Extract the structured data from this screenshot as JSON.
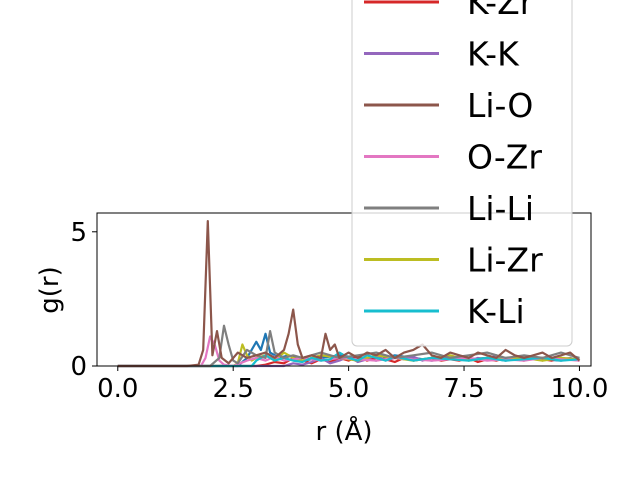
{
  "chart_data": {
    "type": "line",
    "xlabel": "r (Å)",
    "ylabel": "g(r)",
    "xlim": [
      -0.45,
      10.25
    ],
    "ylim": [
      0,
      5.7
    ],
    "xticks": [
      0.0,
      2.5,
      5.0,
      7.5,
      10.0
    ],
    "xtick_labels": [
      "0.0",
      "2.5",
      "5.0",
      "7.5",
      "10.0"
    ],
    "yticks": [
      0,
      5
    ],
    "ytick_labels": [
      "0",
      "5"
    ],
    "grid": false,
    "legend_position": "upper-right (extends above axes)",
    "series": [
      {
        "name": "K-Zr",
        "color": "#d62728",
        "x": [
          0,
          3.0,
          3.2,
          3.4,
          3.6,
          3.8,
          4.0,
          4.2,
          4.4,
          4.6,
          4.8,
          5.0,
          5.2,
          5.4,
          5.6,
          5.8,
          6.0,
          6.2,
          6.4,
          6.6,
          6.8,
          7.0,
          7.2,
          7.4,
          7.6,
          7.8,
          8.0,
          8.2,
          8.4,
          8.6,
          8.8,
          9.0,
          9.2,
          9.4,
          9.6,
          9.8,
          10.0
        ],
        "y": [
          0,
          0,
          0.05,
          0.15,
          0.1,
          0.3,
          0.2,
          0.1,
          0.25,
          0.15,
          0.3,
          0.2,
          0.35,
          0.2,
          0.3,
          0.25,
          0.15,
          0.3,
          0.2,
          0.25,
          0.3,
          0.2,
          0.25,
          0.2,
          0.3,
          0.15,
          0.25,
          0.2,
          0.3,
          0.25,
          0.2,
          0.3,
          0.25,
          0.2,
          0.3,
          0.25,
          0.2
        ]
      },
      {
        "name": "K-K",
        "color": "#9467bd",
        "x": [
          0,
          3.6,
          3.8,
          4.0,
          4.2,
          4.4,
          4.6,
          4.8,
          5.0,
          5.2,
          5.4,
          5.6,
          5.8,
          6.0,
          6.2,
          6.4,
          6.6,
          6.8,
          7.0,
          7.2,
          7.4,
          7.6,
          7.8,
          8.0,
          8.2,
          8.4,
          8.6,
          8.8,
          9.0,
          9.2,
          9.4,
          9.6,
          9.8,
          10.0
        ],
        "y": [
          0,
          0,
          0.1,
          0.05,
          0.15,
          0.3,
          0.1,
          0.2,
          0.35,
          0.15,
          0.25,
          0.4,
          0.2,
          0.3,
          0.25,
          0.35,
          0.2,
          0.3,
          0.25,
          0.3,
          0.35,
          0.2,
          0.3,
          0.25,
          0.4,
          0.2,
          0.3,
          0.25,
          0.35,
          0.2,
          0.3,
          0.25,
          0.3,
          0.2
        ]
      },
      {
        "name": "Li-O",
        "color": "#8c564b",
        "x": [
          0,
          1.5,
          1.75,
          1.85,
          1.95,
          2.05,
          2.15,
          2.25,
          2.4,
          2.6,
          2.8,
          3.0,
          3.2,
          3.4,
          3.6,
          3.7,
          3.8,
          3.9,
          4.0,
          4.2,
          4.4,
          4.5,
          4.6,
          4.7,
          4.8,
          5.0,
          5.2,
          5.4,
          5.6,
          5.8,
          6.0,
          6.2,
          6.4,
          6.6,
          6.8,
          7.0,
          7.2,
          7.4,
          7.6,
          7.8,
          8.0,
          8.2,
          8.4,
          8.6,
          8.8,
          9.0,
          9.2,
          9.4,
          9.6,
          9.8,
          10.0
        ],
        "y": [
          0,
          0,
          0.05,
          0.6,
          5.4,
          0.4,
          1.3,
          0.3,
          0.1,
          0.5,
          0.3,
          0.4,
          0.5,
          0.3,
          0.6,
          1.2,
          2.1,
          0.8,
          0.3,
          0.4,
          0.3,
          1.2,
          0.6,
          0.8,
          0.3,
          0.5,
          0.3,
          0.5,
          0.4,
          0.6,
          0.3,
          0.5,
          0.6,
          0.8,
          0.4,
          0.3,
          0.5,
          0.4,
          0.3,
          0.5,
          0.4,
          0.3,
          0.6,
          0.4,
          0.3,
          0.4,
          0.5,
          0.3,
          0.4,
          0.5,
          0.2
        ]
      },
      {
        "name": "O-Zr",
        "color": "#e377c2",
        "x": [
          0,
          1.8,
          1.9,
          2.0,
          2.1,
          2.2,
          2.3,
          2.5,
          2.8,
          3.0,
          3.2,
          3.4,
          3.6,
          3.8,
          4.0,
          4.4,
          4.8,
          5.2,
          5.6,
          6.0,
          6.4,
          6.8,
          7.2,
          7.6,
          8.0,
          8.4,
          8.8,
          9.2,
          9.6,
          10.0
        ],
        "y": [
          0,
          0,
          0.3,
          1.1,
          0.8,
          0.2,
          0.05,
          0,
          0.2,
          0.3,
          0.2,
          0.35,
          0.2,
          0.25,
          0.3,
          0.2,
          0.3,
          0.25,
          0.2,
          0.3,
          0.25,
          0.2,
          0.25,
          0.3,
          0.2,
          0.25,
          0.2,
          0.3,
          0.25,
          0.2
        ]
      },
      {
        "name": "Li-Li",
        "color": "#7f7f7f",
        "x": [
          0,
          2.0,
          2.2,
          2.3,
          2.4,
          2.5,
          2.6,
          2.8,
          3.0,
          3.2,
          3.3,
          3.4,
          3.6,
          3.8,
          4.0,
          4.4,
          4.8,
          5.2,
          5.6,
          6.0,
          6.4,
          6.8,
          7.2,
          7.6,
          8.0,
          8.4,
          8.8,
          9.2,
          9.6,
          10.0
        ],
        "y": [
          0,
          0,
          0.3,
          1.5,
          0.8,
          0.2,
          0.1,
          0.6,
          0.4,
          0.3,
          1.3,
          0.5,
          0.3,
          0.4,
          0.3,
          0.5,
          0.3,
          0.4,
          0.5,
          0.3,
          0.4,
          0.5,
          0.3,
          0.4,
          0.5,
          0.3,
          0.4,
          0.3,
          0.5,
          0.3
        ]
      },
      {
        "name": "Li-Zr",
        "color": "#bcbd22",
        "x": [
          0,
          2.5,
          2.6,
          2.7,
          2.8,
          2.9,
          3.0,
          3.2,
          3.4,
          3.6,
          3.8,
          4.0,
          4.4,
          4.8,
          5.2,
          5.6,
          6.0,
          6.4,
          6.8,
          7.2,
          7.6,
          8.0,
          8.4,
          8.8,
          9.2,
          9.6,
          10.0
        ],
        "y": [
          0,
          0,
          0.1,
          0.8,
          0.4,
          0.2,
          0.3,
          0.4,
          0.2,
          0.5,
          0.3,
          0.2,
          0.4,
          0.3,
          0.2,
          0.4,
          0.3,
          0.2,
          0.3,
          0.4,
          0.2,
          0.3,
          0.25,
          0.3,
          0.2,
          0.3,
          0.25
        ]
      },
      {
        "name": "K-Li",
        "color": "#17becf",
        "x": [
          0,
          2.9,
          3.0,
          3.2,
          3.4,
          3.6,
          3.8,
          4.0,
          4.2,
          4.4,
          4.6,
          4.8,
          5.0,
          5.2,
          5.4,
          5.6,
          5.8,
          6.0,
          6.4,
          6.8,
          7.2,
          7.6,
          8.0,
          8.4,
          8.8,
          9.2,
          9.6,
          10.0
        ],
        "y": [
          0,
          0,
          0.2,
          0.4,
          0.2,
          0.3,
          0.2,
          0.15,
          0.3,
          0.2,
          0.25,
          0.5,
          0.3,
          0.2,
          0.4,
          0.3,
          0.2,
          0.35,
          0.2,
          0.3,
          0.25,
          0.2,
          0.3,
          0.2,
          0.25,
          0.3,
          0.2,
          0.25
        ]
      },
      {
        "name": "",
        "color": "#1f77b4",
        "x": [
          0,
          2.6,
          2.8,
          3.0,
          3.1,
          3.2,
          3.3,
          3.5,
          3.7,
          4.0,
          4.4,
          4.8,
          5.2,
          5.6,
          6.0,
          6.4,
          6.8,
          7.2,
          7.6,
          8.0,
          8.4,
          8.8,
          9.2,
          9.6,
          10.0
        ],
        "y": [
          0,
          0,
          0.3,
          0.9,
          0.6,
          1.2,
          0.5,
          0.3,
          0.4,
          0.2,
          0.3,
          0.4,
          0.3,
          0.2,
          0.4,
          0.3,
          0.2,
          0.3,
          0.25,
          0.3,
          0.2,
          0.3,
          0.25,
          0.2,
          0.3
        ]
      }
    ]
  }
}
